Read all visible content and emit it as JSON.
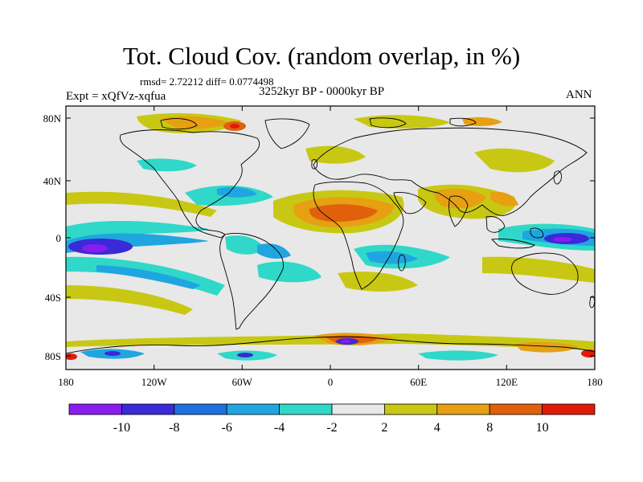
{
  "title": "Tot. Cloud Cov. (random overlap, in %)",
  "stats": "rmsd= 2.72212 diff= 0.0774498",
  "period": "3252kyr BP - 0000kyr BP",
  "experiment": "Expt = xQfVz-xqfua",
  "season": "ANN",
  "lat_ticks": [
    "80N",
    "40N",
    "0",
    "40S",
    "80S"
  ],
  "lon_ticks": [
    "180",
    "120W",
    "60W",
    "0",
    "60E",
    "120E",
    "180"
  ],
  "colorbar": {
    "labels": [
      "-10",
      "-8",
      "-6",
      "-4",
      "-2",
      "2",
      "4",
      "8",
      "10"
    ],
    "colors": [
      "#8a1cf0",
      "#3a2ad8",
      "#1f6fe0",
      "#1fa6e0",
      "#2fd8c8",
      "#e8e8e8",
      "#c8c814",
      "#e6a012",
      "#e0600c",
      "#e01a0a"
    ]
  }
}
